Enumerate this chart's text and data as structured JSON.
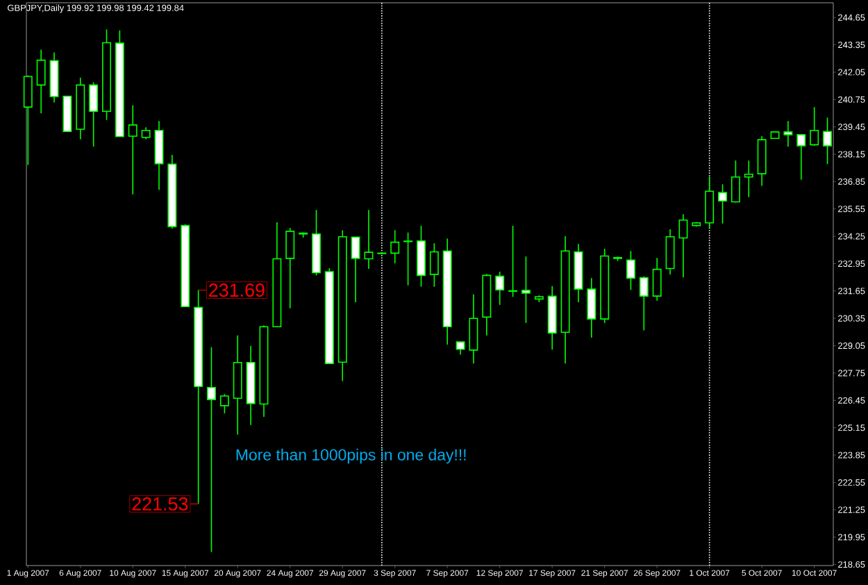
{
  "chart_data": {
    "type": "candlestick",
    "title": "GBPJPY,Daily 199.92 199.98 199.42 199.84",
    "categories": [
      "1 Aug 2007",
      null,
      null,
      null,
      "6 Aug 2007",
      null,
      null,
      null,
      "10 Aug 2007",
      null,
      null,
      null,
      "15 Aug 2007",
      null,
      null,
      null,
      "20 Aug 2007",
      null,
      null,
      null,
      "24 Aug 2007",
      null,
      null,
      null,
      "29 Aug 2007",
      null,
      null,
      null,
      "3 Sep 2007",
      null,
      null,
      null,
      "7 Sep 2007",
      null,
      null,
      null,
      "12 Sep 2007",
      null,
      null,
      null,
      "17 Sep 2007",
      null,
      null,
      null,
      "21 Sep 2007",
      null,
      null,
      null,
      "26 Sep 2007",
      null,
      null,
      null,
      "1 Oct 2007",
      null,
      null,
      null,
      "5 Oct 2007",
      null,
      null,
      null,
      "10 Oct 2007",
      null
    ],
    "ohlc": [
      [
        240.39,
        241.9,
        237.64,
        241.85
      ],
      [
        241.44,
        243.12,
        240.1,
        242.62
      ],
      [
        242.6,
        242.99,
        240.61,
        240.89
      ],
      [
        240.91,
        240.91,
        239.23,
        239.23
      ],
      [
        239.34,
        241.79,
        238.86,
        241.44
      ],
      [
        241.44,
        241.57,
        238.51,
        240.19
      ],
      [
        240.19,
        244.08,
        239.78,
        243.45
      ],
      [
        243.43,
        244.04,
        238.99,
        238.99
      ],
      [
        239.01,
        240.48,
        236.24,
        239.54
      ],
      [
        238.95,
        239.43,
        238.86,
        239.28
      ],
      [
        239.28,
        239.73,
        236.46,
        237.7
      ],
      [
        237.68,
        238.12,
        234.62,
        234.71
      ],
      [
        234.76,
        234.82,
        230.91,
        230.91
      ],
      [
        230.87,
        231.69,
        221.53,
        227.11
      ],
      [
        227.06,
        228.98,
        219.24,
        226.49
      ],
      [
        226.2,
        226.75,
        225.83,
        226.66
      ],
      [
        226.55,
        229.54,
        224.82,
        228.25
      ],
      [
        228.25,
        229.04,
        225.28,
        226.3
      ],
      [
        226.28,
        230.02,
        225.67,
        229.95
      ],
      [
        229.95,
        234.91,
        229.95,
        233.18
      ],
      [
        233.2,
        234.65,
        230.83,
        234.49
      ],
      [
        234.36,
        234.43,
        234.19,
        234.4
      ],
      [
        234.36,
        235.5,
        232.39,
        232.52
      ],
      [
        232.57,
        232.74,
        228.2,
        228.2
      ],
      [
        228.27,
        234.54,
        227.37,
        234.23
      ],
      [
        234.21,
        234.21,
        231.12,
        233.2
      ],
      [
        233.18,
        235.5,
        232.7,
        233.49
      ],
      [
        233.43,
        233.47,
        233.41,
        233.45
      ],
      [
        233.45,
        234.54,
        232.96,
        233.97
      ],
      [
        234.0,
        234.43,
        231.92,
        234.02
      ],
      [
        234.03,
        234.75,
        231.85,
        232.39
      ],
      [
        232.44,
        233.92,
        231.85,
        233.51
      ],
      [
        233.55,
        234.14,
        229.1,
        229.95
      ],
      [
        229.23,
        229.23,
        228.62,
        228.88
      ],
      [
        228.84,
        231.5,
        228.2,
        230.35
      ],
      [
        230.41,
        232.46,
        229.54,
        232.39
      ],
      [
        232.35,
        232.57,
        230.99,
        231.7
      ],
      [
        231.66,
        234.75,
        231.37,
        231.64
      ],
      [
        231.68,
        233.29,
        230.13,
        231.55
      ],
      [
        231.27,
        231.44,
        231.12,
        231.38
      ],
      [
        231.4,
        231.88,
        228.86,
        229.65
      ],
      [
        229.69,
        234.25,
        228.2,
        233.55
      ],
      [
        233.51,
        233.88,
        231.12,
        231.74
      ],
      [
        231.74,
        232.26,
        229.43,
        230.32
      ],
      [
        230.32,
        233.66,
        230.13,
        233.31
      ],
      [
        233.24,
        233.28,
        233.08,
        233.2
      ],
      [
        233.12,
        233.55,
        231.7,
        232.26
      ],
      [
        232.28,
        232.35,
        229.78,
        231.41
      ],
      [
        231.41,
        233.22,
        231.19,
        232.68
      ],
      [
        232.72,
        234.58,
        232.44,
        234.23
      ],
      [
        234.17,
        235.3,
        232.3,
        235.02
      ],
      [
        234.76,
        234.93,
        234.71,
        234.89
      ],
      [
        234.89,
        237.09,
        234.65,
        236.39
      ],
      [
        236.33,
        236.72,
        234.86,
        235.93
      ],
      [
        235.89,
        237.85,
        235.85,
        237.07
      ],
      [
        237.07,
        237.85,
        236.11,
        237.2
      ],
      [
        237.22,
        239.01,
        236.65,
        238.84
      ],
      [
        238.9,
        239.21,
        238.9,
        239.21
      ],
      [
        239.21,
        239.73,
        238.51,
        239.08
      ],
      [
        239.08,
        239.08,
        236.94,
        238.55
      ],
      [
        238.6,
        240.39,
        238.55,
        239.28
      ],
      [
        239.23,
        239.89,
        237.68,
        238.55
      ]
    ],
    "color": "#00ff00",
    "ylim": [
      218.6,
      245.35
    ],
    "yticks": [
      244.65,
      243.35,
      242.05,
      240.75,
      239.45,
      238.15,
      236.85,
      235.55,
      234.25,
      232.95,
      231.65,
      230.35,
      229.05,
      227.75,
      226.45,
      225.15,
      223.85,
      222.55,
      221.25,
      219.95,
      218.65
    ],
    "annotations": [
      "231.69",
      "221.53",
      "More than 1000pips in one day!!!"
    ]
  }
}
